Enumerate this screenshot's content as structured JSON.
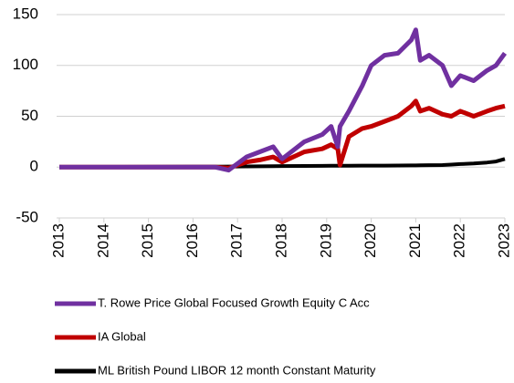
{
  "chart_data": {
    "type": "line",
    "x": [
      2013,
      2016,
      2016.5,
      2016.8,
      2017.2,
      2017.5,
      2017.8,
      2018.0,
      2018.5,
      2018.9,
      2019.1,
      2019.25,
      2019.3,
      2019.5,
      2019.8,
      2020.0,
      2020.3,
      2020.6,
      2020.9,
      2021.0,
      2021.1,
      2021.3,
      2021.6,
      2021.8,
      2022.0,
      2022.3,
      2022.6,
      2022.8,
      2023.0
    ],
    "series": [
      {
        "name": "T. Rowe Price Global Focused Growth Equity C Acc",
        "color": "#7030a0",
        "values": [
          0,
          0,
          0,
          -3,
          10,
          15,
          20,
          8,
          25,
          32,
          40,
          20,
          40,
          55,
          80,
          100,
          110,
          112,
          125,
          135,
          105,
          110,
          100,
          80,
          90,
          85,
          95,
          100,
          112
        ]
      },
      {
        "name": "IA Global",
        "color": "#c00000",
        "values": [
          0,
          0,
          0,
          -1,
          5,
          7,
          10,
          5,
          15,
          18,
          22,
          18,
          2,
          30,
          38,
          40,
          45,
          50,
          60,
          65,
          55,
          58,
          52,
          50,
          55,
          50,
          55,
          58,
          60
        ]
      },
      {
        "name": "ML British Pound LIBOR 12 month Constant Maturity",
        "color": "#000000",
        "values": [
          0,
          0.5,
          0.5,
          0.6,
          0.7,
          0.8,
          0.9,
          1,
          1.1,
          1.2,
          1.3,
          1.3,
          1.4,
          1.4,
          1.5,
          1.5,
          1.5,
          1.6,
          1.7,
          1.7,
          1.8,
          1.9,
          2,
          2.5,
          3,
          3.5,
          4.5,
          5.5,
          8
        ]
      }
    ],
    "xlim": [
      2013,
      2023
    ],
    "xticks": [
      2013,
      2014,
      2015,
      2016,
      2017,
      2018,
      2019,
      2020,
      2021,
      2022,
      2023
    ],
    "ylim": [
      -50,
      150
    ],
    "yticks": [
      -50,
      0,
      50,
      100,
      150
    ],
    "grid": true
  }
}
